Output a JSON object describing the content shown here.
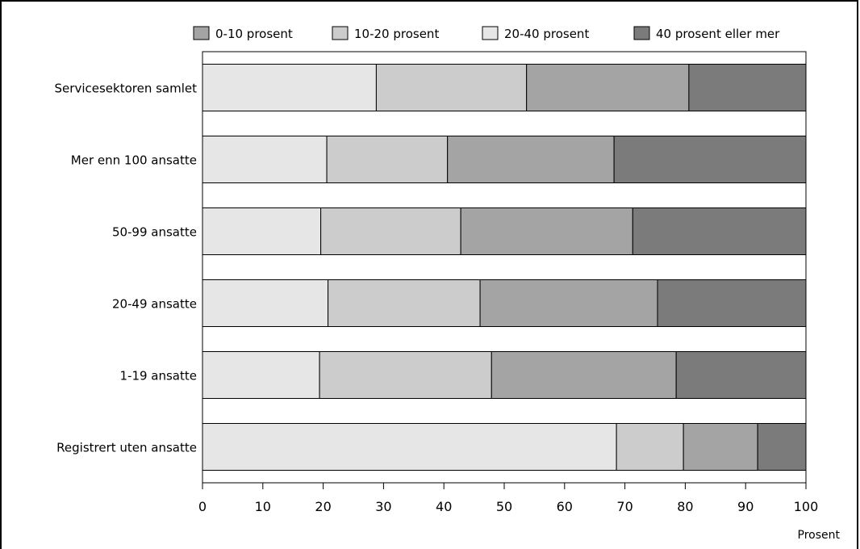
{
  "chart_data": {
    "type": "bar",
    "orientation": "horizontal",
    "stacked": true,
    "categories": [
      "Servicesektoren samlet",
      "Mer enn 100 ansatte",
      "50-99 ansatte",
      "20-49 ansatte",
      "1-19 ansatte",
      "Registrert uten ansatte"
    ],
    "series": [
      {
        "name": "20-40 prosent",
        "color": "#e6e6e6",
        "values": [
          28.8,
          20.6,
          19.6,
          20.8,
          19.4,
          68.6
        ]
      },
      {
        "name": "10-20 prosent",
        "color": "#cccccc",
        "values": [
          24.9,
          20.0,
          23.2,
          25.2,
          28.5,
          11.1
        ]
      },
      {
        "name": "0-10 prosent",
        "color": "#a4a4a4",
        "values": [
          26.9,
          27.6,
          28.5,
          29.4,
          30.6,
          12.3
        ]
      },
      {
        "name": "40 prosent eller mer",
        "color": "#7b7b7b",
        "values": [
          19.4,
          31.8,
          28.7,
          24.6,
          21.5,
          8.0
        ]
      }
    ],
    "legend_order": [
      "0-10 prosent",
      "10-20 prosent",
      "20-40 prosent",
      "40 prosent eller mer"
    ],
    "legend_position": "top",
    "xlabel": "Prosent",
    "xlim": [
      0,
      100
    ],
    "xticks": [
      0,
      10,
      20,
      30,
      40,
      50,
      60,
      70,
      80,
      90,
      100
    ],
    "grid": false
  }
}
